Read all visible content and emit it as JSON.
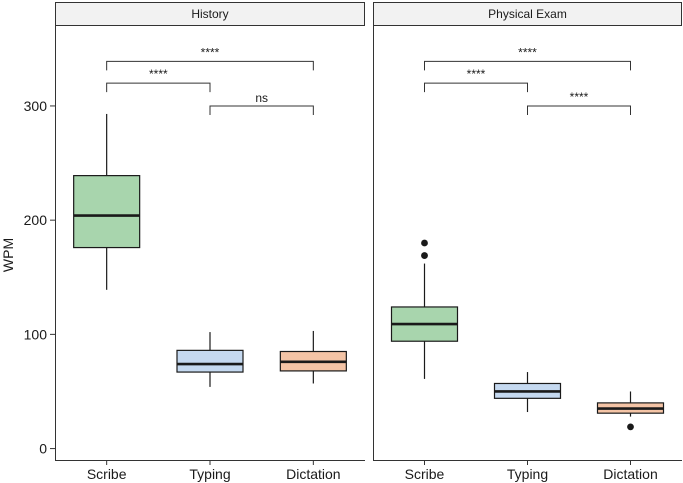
{
  "chart_data": {
    "type": "boxplot",
    "ylabel": "WPM",
    "xlabel": "",
    "ylim": [
      -10,
      370
    ],
    "yticks": [
      0,
      100,
      200,
      300
    ],
    "categories": [
      "Scribe",
      "Typing",
      "Dictation"
    ],
    "colors": {
      "Scribe": "#a8d5ad",
      "Typing": "#c5d9f0",
      "Dictation": "#f4c4a6"
    },
    "grid": false,
    "panels": [
      {
        "title": "History",
        "boxes": [
          {
            "category": "Scribe",
            "min": 139,
            "q1": 176,
            "median": 204,
            "q3": 239,
            "max": 293,
            "outliers": []
          },
          {
            "category": "Typing",
            "min": 54,
            "q1": 67,
            "median": 74,
            "q3": 86,
            "max": 102,
            "outliers": []
          },
          {
            "category": "Dictation",
            "min": 57,
            "q1": 68,
            "median": 76,
            "q3": 85,
            "max": 103,
            "outliers": []
          }
        ],
        "comparisons": [
          {
            "from": "Scribe",
            "to": "Typing",
            "label": "****",
            "y": 320
          },
          {
            "from": "Typing",
            "to": "Dictation",
            "label": "ns",
            "y": 300
          },
          {
            "from": "Scribe",
            "to": "Dictation",
            "label": "****",
            "y": 339
          }
        ]
      },
      {
        "title": "Physical Exam",
        "boxes": [
          {
            "category": "Scribe",
            "min": 61,
            "q1": 94,
            "median": 109,
            "q3": 124,
            "max": 162,
            "outliers": [
              169,
              180
            ]
          },
          {
            "category": "Typing",
            "min": 32,
            "q1": 44,
            "median": 50,
            "q3": 57,
            "max": 67,
            "outliers": []
          },
          {
            "category": "Dictation",
            "min": 28,
            "q1": 31,
            "median": 35,
            "q3": 40,
            "max": 50,
            "outliers": [
              19
            ]
          }
        ],
        "comparisons": [
          {
            "from": "Scribe",
            "to": "Typing",
            "label": "****",
            "y": 320
          },
          {
            "from": "Typing",
            "to": "Dictation",
            "label": "****",
            "y": 300
          },
          {
            "from": "Scribe",
            "to": "Dictation",
            "label": "****",
            "y": 339
          }
        ]
      }
    ]
  }
}
